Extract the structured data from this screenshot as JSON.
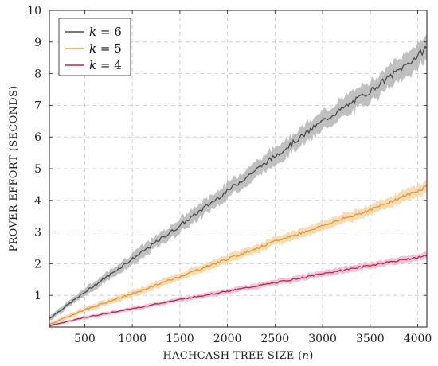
{
  "chart_data": {
    "type": "line",
    "title": "",
    "xlabel": "HACHCASH TREE SIZE (",
    "xlabel_var": "n",
    "xlabel_close": ")",
    "ylabel": "PROVER EFFORT (SECONDS)",
    "xlim": [
      128,
      4096
    ],
    "ylim": [
      0,
      10
    ],
    "x_ticks": [
      500,
      1000,
      1500,
      2000,
      2500,
      3000,
      3500,
      4000
    ],
    "y_ticks": [
      1,
      2,
      3,
      4,
      5,
      6,
      7,
      8,
      9,
      10
    ],
    "grid": true,
    "legend_position": "top-left",
    "series": [
      {
        "name": "k = 6",
        "legend_var": "k",
        "legend_eq": " = 6",
        "color": "#4a4a4a",
        "band_color": "#b5b5b5",
        "x": [
          128,
          500,
          1000,
          1500,
          2000,
          2500,
          3000,
          3500,
          4000,
          4096
        ],
        "y": [
          0.27,
          1.1,
          2.15,
          3.2,
          4.3,
          5.4,
          6.5,
          7.45,
          8.55,
          8.85
        ],
        "band": [
          0.08,
          0.12,
          0.18,
          0.22,
          0.25,
          0.28,
          0.3,
          0.33,
          0.38,
          0.42
        ]
      },
      {
        "name": "k = 5",
        "legend_var": "k",
        "legend_eq": " = 5",
        "color": "#e8952e",
        "band_color": "#f6d6a8",
        "x": [
          128,
          500,
          1000,
          1500,
          2000,
          2500,
          3000,
          3500,
          4000,
          4096
        ],
        "y": [
          0.08,
          0.55,
          1.05,
          1.6,
          2.15,
          2.7,
          3.2,
          3.7,
          4.3,
          4.45
        ],
        "band": [
          0.05,
          0.08,
          0.1,
          0.12,
          0.13,
          0.14,
          0.15,
          0.16,
          0.18,
          0.2
        ]
      },
      {
        "name": "k = 4",
        "legend_var": "k",
        "legend_eq": " = 4",
        "color": "#b5294e",
        "band_color": "#f2b6cf",
        "x": [
          128,
          500,
          1000,
          1500,
          2000,
          2500,
          3000,
          3500,
          4000,
          4096
        ],
        "y": [
          0.04,
          0.3,
          0.58,
          0.87,
          1.13,
          1.4,
          1.68,
          1.95,
          2.2,
          2.25
        ],
        "band": [
          0.03,
          0.05,
          0.06,
          0.07,
          0.08,
          0.09,
          0.1,
          0.1,
          0.1,
          0.1
        ]
      }
    ]
  }
}
